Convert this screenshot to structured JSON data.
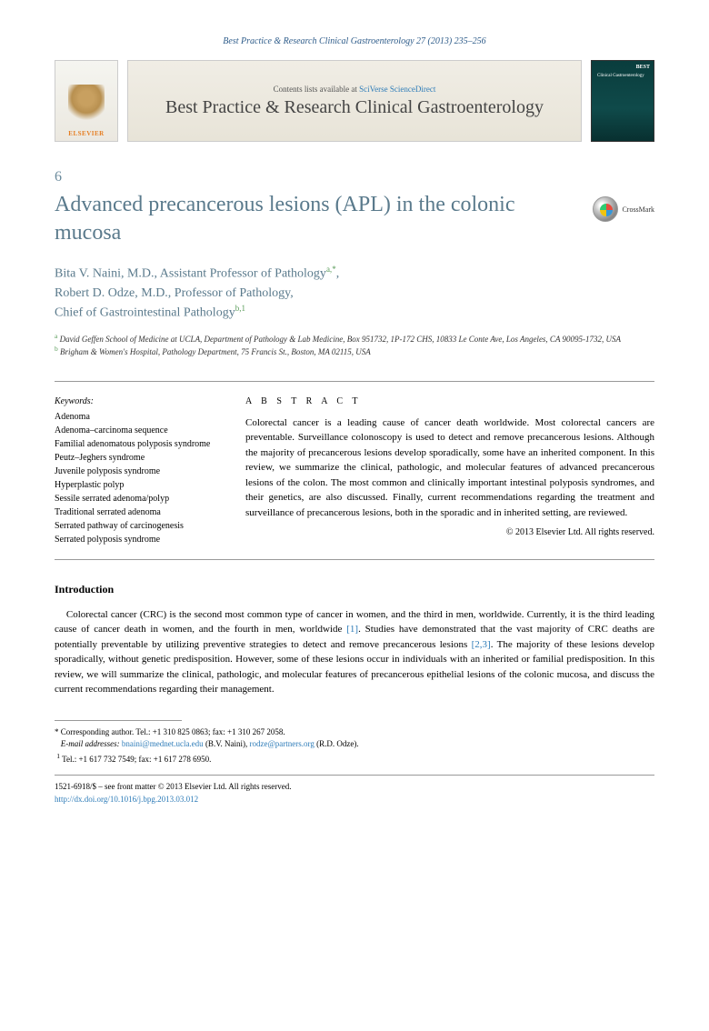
{
  "header": {
    "citation": "Best Practice & Research Clinical Gastroenterology 27 (2013) 235–256",
    "contents_prefix": "Contents lists available at ",
    "contents_link": "SciVerse ScienceDirect",
    "journal_name": "Best Practice & Research Clinical Gastroenterology",
    "elsevier": "ELSEVIER"
  },
  "article": {
    "number": "6",
    "title": "Advanced precancerous lesions (APL) in the colonic mucosa",
    "crossmark": "CrossMark"
  },
  "authors": {
    "line1": "Bita V. Naini, M.D., Assistant Professor of Pathology",
    "sup1": "a,",
    "sup1b": "*",
    "line2": "Robert D. Odze, M.D., Professor of Pathology,",
    "line3": "Chief of Gastrointestinal Pathology",
    "sup2": "b,1"
  },
  "affiliations": {
    "a_sup": "a",
    "a": "David Geffen School of Medicine at UCLA, Department of Pathology & Lab Medicine, Box 951732, 1P-172 CHS, 10833 Le Conte Ave, Los Angeles, CA 90095-1732, USA",
    "b_sup": "b",
    "b": "Brigham & Women's Hospital, Pathology Department, 75 Francis St., Boston, MA 02115, USA"
  },
  "keywords": {
    "label": "Keywords:",
    "items": [
      "Adenoma",
      "Adenoma–carcinoma sequence",
      "Familial adenomatous polyposis syndrome",
      "Peutz–Jeghers syndrome",
      "Juvenile polyposis syndrome",
      "Hyperplastic polyp",
      "Sessile serrated adenoma/polyp",
      "Traditional serrated adenoma",
      "Serrated pathway of carcinogenesis",
      "Serrated polyposis syndrome"
    ]
  },
  "abstract": {
    "label": "A B S T R A C T",
    "text": "Colorectal cancer is a leading cause of cancer death worldwide. Most colorectal cancers are preventable. Surveillance colonoscopy is used to detect and remove precancerous lesions. Although the majority of precancerous lesions develop sporadically, some have an inherited component. In this review, we summarize the clinical, pathologic, and molecular features of advanced precancerous lesions of the colon. The most common and clinically important intestinal polyposis syndromes, and their genetics, are also discussed. Finally, current recommendations regarding the treatment and surveillance of precancerous lesions, both in the sporadic and in inherited setting, are reviewed.",
    "copyright": "© 2013 Elsevier Ltd. All rights reserved."
  },
  "intro": {
    "heading": "Introduction",
    "p1_a": "Colorectal cancer (CRC) is the second most common type of cancer in women, and the third in men, worldwide. Currently, it is the third leading cause of cancer death in women, and the fourth in men, worldwide ",
    "ref1": "[1]",
    "p1_b": ". Studies have demonstrated that the vast majority of CRC deaths are potentially preventable by utilizing preventive strategies to detect and remove precancerous lesions ",
    "ref2": "[2,3]",
    "p1_c": ". The majority of these lesions develop sporadically, without genetic predisposition. However, some of these lesions occur in individuals with an inherited or familial predisposition. In this review, we will summarize the clinical, pathologic, and molecular features of precancerous epithelial lesions of the colonic mucosa, and discuss the current recommendations regarding their management."
  },
  "footnotes": {
    "corr_label": "* Corresponding author. Tel.: +1 310 825 0863; fax: +1 310 267 2058.",
    "email_label": "E-mail addresses: ",
    "email1": "bnaini@mednet.ucla.edu",
    "email1_name": " (B.V. Naini), ",
    "email2": "rodze@partners.org",
    "email2_name": " (R.D. Odze).",
    "note1": "Tel.: +1 617 732 7549; fax: +1 617 278 6950.",
    "note1_sup": "1"
  },
  "bottom": {
    "issn": "1521-6918/$ – see front matter © 2013 Elsevier Ltd. All rights reserved.",
    "doi": "http://dx.doi.org/10.1016/j.bpg.2013.03.012"
  },
  "colors": {
    "heading_color": "#5a7a8c",
    "link_color": "#2e7cb8",
    "sup_green": "#5a9c5a"
  }
}
